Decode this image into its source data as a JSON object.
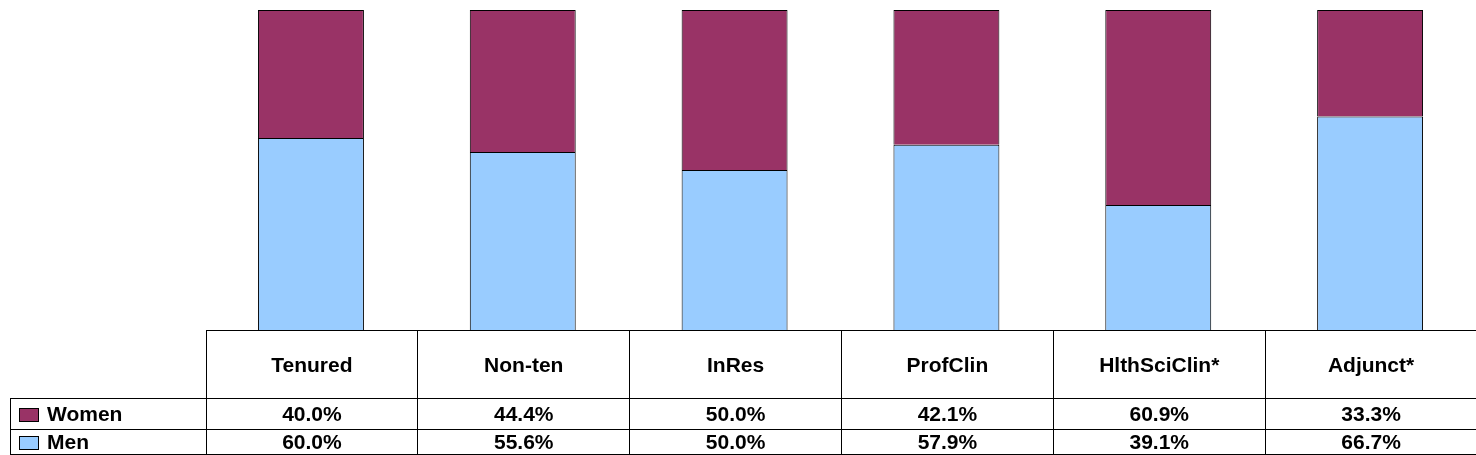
{
  "chart_data": {
    "type": "bar",
    "stacked": true,
    "categories": [
      "Tenured",
      "Non-ten",
      "InRes",
      "ProfClin",
      "HlthSciClin*",
      "Adjunct*"
    ],
    "series": [
      {
        "name": "Men",
        "color": "#99ccff",
        "values": [
          60.0,
          55.6,
          50.0,
          57.9,
          39.1,
          66.7
        ],
        "value_labels": [
          "60.0%",
          "55.6%",
          "50.0%",
          "57.9%",
          "39.1%",
          "66.7%"
        ]
      },
      {
        "name": "Women",
        "color": "#993366",
        "values": [
          40.0,
          44.4,
          50.0,
          42.1,
          60.9,
          33.3
        ],
        "value_labels": [
          "40.0%",
          "44.4%",
          "50.0%",
          "42.1%",
          "60.9%",
          "33.3%"
        ]
      }
    ],
    "legend": "bottom"
  }
}
